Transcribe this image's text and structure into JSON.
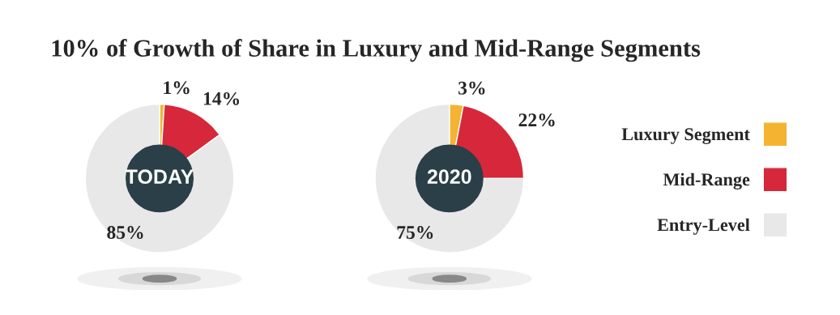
{
  "chart_data": [
    {
      "type": "donut",
      "title": "10% of Growth of Share in Luxury and Mid-Range Segments",
      "annotations": [
        "TODAY"
      ],
      "categories": [
        "Luxury Segment",
        "Mid-Range",
        "Entry-Level"
      ],
      "values": [
        1,
        14,
        85
      ],
      "value_labels": [
        "1%",
        "14%",
        "85%"
      ],
      "colors": [
        "#f4b331",
        "#d6283a",
        "#e8e8e8"
      ],
      "legend": "right"
    },
    {
      "type": "donut",
      "annotations": [
        "2020"
      ],
      "values": [
        3,
        22,
        75
      ],
      "value_labels": [
        "3%",
        "22%",
        "75%"
      ],
      "colors": [
        "#f4b331",
        "#d6283a",
        "#e8e8e8"
      ],
      "legend": false
    }
  ]
}
